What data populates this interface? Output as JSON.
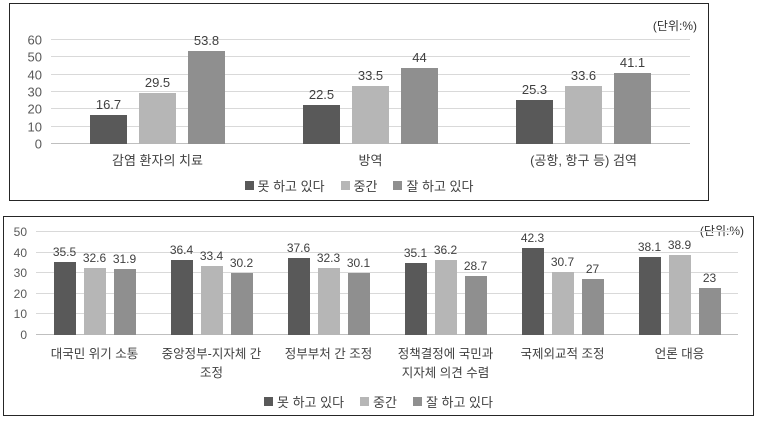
{
  "chart_data": [
    {
      "type": "bar",
      "units_label": "(단위:%)",
      "ylim": [
        0,
        60
      ],
      "yticks": [
        0,
        10,
        20,
        30,
        40,
        50,
        60
      ],
      "grid": true,
      "legend_position": "bottom",
      "categories": [
        "감염 환자의 치료",
        "방역",
        "(공항, 항구 등) 검역"
      ],
      "series": [
        {
          "name": "못 하고 있다",
          "color": "#595959",
          "values": [
            16.7,
            22.5,
            25.3
          ]
        },
        {
          "name": "중간",
          "color": "#b6b6b6",
          "values": [
            29.5,
            33.5,
            33.6
          ]
        },
        {
          "name": "잘 하고 있다",
          "color": "#8f8f8f",
          "values": [
            53.8,
            44,
            41.1
          ]
        }
      ]
    },
    {
      "type": "bar",
      "units_label": "(단위:%)",
      "ylim": [
        0,
        50
      ],
      "yticks": [
        0,
        10,
        20,
        30,
        40,
        50
      ],
      "grid": true,
      "legend_position": "bottom",
      "categories": [
        "대국민 위기 소통",
        "중앙정부-지자체 간\n조정",
        "정부부처 간 조정",
        "정책결정에 국민과\n지자체 의견 수렴",
        "국제외교적 조정",
        "언론 대응"
      ],
      "series": [
        {
          "name": "못 하고 있다",
          "color": "#595959",
          "values": [
            35.5,
            36.4,
            37.6,
            35.1,
            42.3,
            38.1
          ]
        },
        {
          "name": "중간",
          "color": "#b6b6b6",
          "values": [
            32.6,
            33.4,
            32.3,
            36.2,
            30.7,
            38.9
          ]
        },
        {
          "name": "잘 하고 있다",
          "color": "#8f8f8f",
          "values": [
            31.9,
            30.2,
            30.1,
            28.7,
            27,
            23
          ]
        }
      ]
    }
  ]
}
